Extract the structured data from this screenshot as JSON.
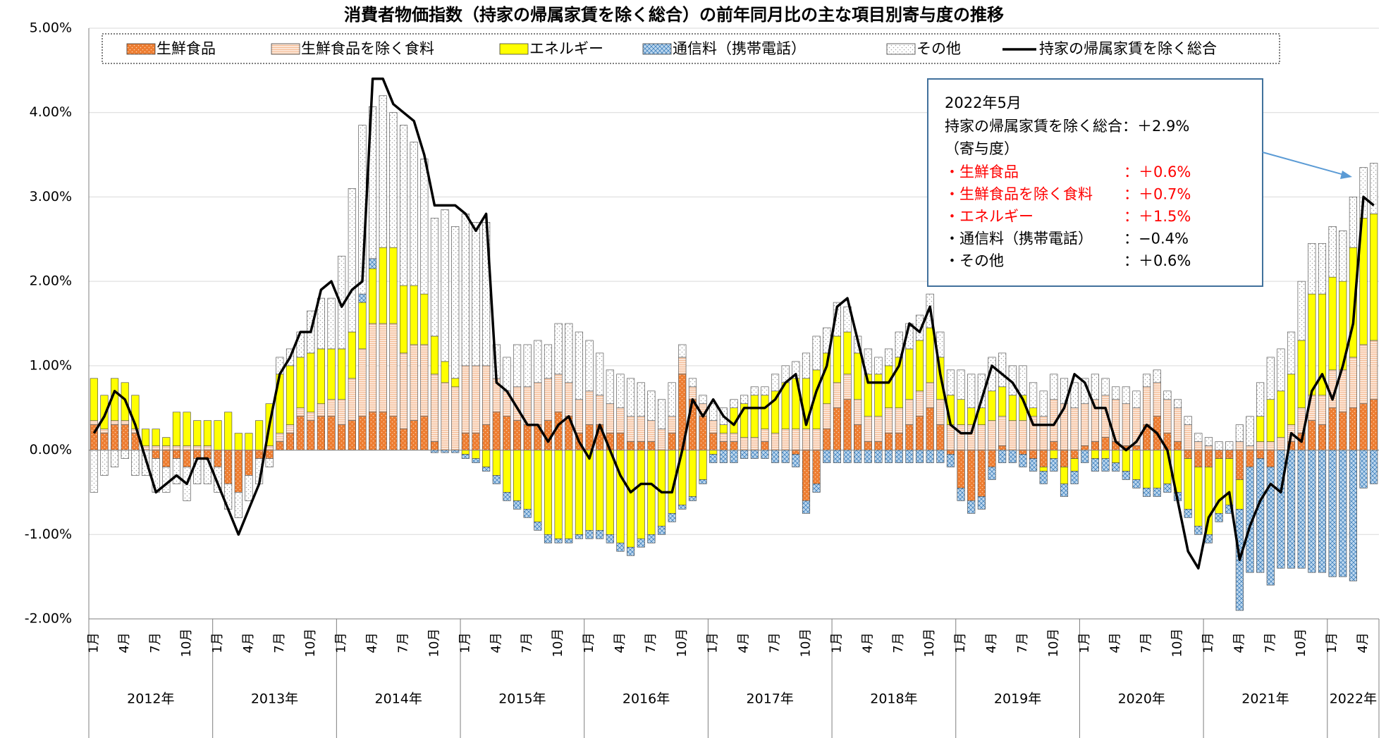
{
  "chart_data": {
    "type": "stacked_bar_line",
    "title": "消費者物価指数（持家の帰属家賃を除く総合）の前年同月比の主な項目別寄与度の推移",
    "ylim": [
      -2,
      5
    ],
    "yticks": [
      {
        "value": -2,
        "label": "-2.00%"
      },
      {
        "value": -1,
        "label": "-1.00%"
      },
      {
        "value": 0,
        "label": "0.00%"
      },
      {
        "value": 1,
        "label": "1.00%"
      },
      {
        "value": 2,
        "label": "2.00%"
      },
      {
        "value": 3,
        "label": "3.00%"
      },
      {
        "value": 4,
        "label": "4.00%"
      },
      {
        "value": 5,
        "label": "5.00%"
      }
    ],
    "grid": true,
    "categories": [
      "1月",
      null,
      null,
      "4月",
      null,
      null,
      "7月",
      null,
      null,
      "10月",
      null,
      null,
      "1月",
      null,
      null,
      "4月",
      null,
      null,
      "7月",
      null,
      null,
      "10月",
      null,
      null,
      "1月",
      null,
      null,
      "4月",
      null,
      null,
      "7月",
      null,
      null,
      "10月",
      null,
      null,
      "1月",
      null,
      null,
      "4月",
      null,
      null,
      "7月",
      null,
      null,
      "10月",
      null,
      null,
      "1月",
      null,
      null,
      "4月",
      null,
      null,
      "7月",
      null,
      null,
      "10月",
      null,
      null,
      "1月",
      null,
      null,
      "4月",
      null,
      null,
      "7月",
      null,
      null,
      "10月",
      null,
      null,
      "1月",
      null,
      null,
      "4月",
      null,
      null,
      "7月",
      null,
      null,
      "10月",
      null,
      null,
      "1月",
      null,
      null,
      "4月",
      null,
      null,
      "7月",
      null,
      null,
      "10月",
      null,
      null,
      "1月",
      null,
      null,
      "4月",
      null,
      null,
      "7月",
      null,
      null,
      "10月",
      null,
      null,
      "1月",
      null,
      null,
      "4月",
      null,
      null,
      "7月",
      null,
      null,
      "10月",
      null,
      null,
      "1月",
      null,
      null,
      "4月",
      null
    ],
    "years": [
      "2012年",
      "2013年",
      "2014年",
      "2015年",
      "2016年",
      "2017年",
      "2018年",
      "2019年",
      "2020年",
      "2021年",
      "2022年"
    ],
    "series": [
      {
        "name": "生鮮食品",
        "color": "#ed7d31",
        "pattern": "dots",
        "pattern_color": "#ffd2b0",
        "values": [
          0.3,
          0.2,
          0.3,
          0.3,
          0.2,
          0,
          -0.1,
          -0.2,
          -0.1,
          -0.2,
          -0.1,
          -0.1,
          -0.2,
          -0.4,
          -0.5,
          -0.3,
          -0.1,
          -0.1,
          0.1,
          0.2,
          0.4,
          0.35,
          0.4,
          0.4,
          0.3,
          0.35,
          0.4,
          0.45,
          0.45,
          0.4,
          0.25,
          0.35,
          0.4,
          0.1,
          0,
          0,
          0.2,
          0.2,
          0.3,
          0.45,
          0.4,
          0.35,
          0.3,
          0.3,
          0.35,
          0.45,
          0.4,
          0.2,
          0.3,
          0.3,
          0.2,
          0.2,
          0.1,
          0.1,
          0.1,
          0,
          0.2,
          0.9,
          0.6,
          0.4,
          0.2,
          0.1,
          0.1,
          0,
          0,
          0.1,
          0,
          0,
          -0.05,
          -0.6,
          -0.4,
          0.25,
          0.5,
          0.6,
          0.3,
          0.1,
          0.1,
          0.2,
          0.2,
          0.3,
          0.4,
          0.5,
          0.3,
          -0.05,
          -0.45,
          -0.6,
          -0.55,
          -0.2,
          0.05,
          0,
          -0.05,
          -0.1,
          -0.2,
          0.1,
          -0.2,
          -0.1,
          0.05,
          0.1,
          0.15,
          0.1,
          0.05,
          0.05,
          0.3,
          0.4,
          0.2,
          0.1,
          -0.1,
          -0.2,
          -0.2,
          -0.1,
          -0.1,
          -0.35,
          -0.2,
          -0.1,
          -0.2,
          0,
          0.1,
          0.2,
          0.35,
          0.3,
          0.5,
          0.45,
          0.5,
          0.55,
          0.6
        ]
      },
      {
        "name": "生鮮食品を除く食料",
        "color": "#fbe5d6",
        "pattern": "hlines",
        "pattern_color": "#f4b183",
        "values": [
          0.05,
          0.05,
          0.05,
          0.05,
          0.05,
          0.05,
          0.05,
          0.05,
          0.05,
          0.05,
          0.05,
          0.05,
          0,
          0,
          0,
          0,
          0,
          0.05,
          0.1,
          0.1,
          0.1,
          0.1,
          0.15,
          0.2,
          0.3,
          0.5,
          0.8,
          1.05,
          1.05,
          1.1,
          0.9,
          0.9,
          0.85,
          0.8,
          0.8,
          0.75,
          0.8,
          0.8,
          0.7,
          0.4,
          0.3,
          0.4,
          0.45,
          0.5,
          0.5,
          0.45,
          0.4,
          0.4,
          0.4,
          0.35,
          0.35,
          0.3,
          0.3,
          0.3,
          0.25,
          0.25,
          0.2,
          0.2,
          0.15,
          0.15,
          0.15,
          0.1,
          0.1,
          0.15,
          0.15,
          0.15,
          0.2,
          0.25,
          0.25,
          0.25,
          0.25,
          0.3,
          0.3,
          0.3,
          0.3,
          0.3,
          0.3,
          0.3,
          0.3,
          0.3,
          0.3,
          0.3,
          0.3,
          0.3,
          0.3,
          0.3,
          0.3,
          0.35,
          0.35,
          0.35,
          0.35,
          0.4,
          0.4,
          0.5,
          0.55,
          0.5,
          0.5,
          0.5,
          0.5,
          0.5,
          0.5,
          0.45,
          0.45,
          0.4,
          0.4,
          0.4,
          0.3,
          0.1,
          0.05,
          0,
          0,
          0.1,
          0.05,
          0.1,
          0.1,
          0.15,
          0.2,
          0.3,
          0.3,
          0.35,
          0.45,
          0.5,
          0.6,
          0.7,
          0.7
        ]
      },
      {
        "name": "エネルギー",
        "color": "#ffff00",
        "pattern": "none",
        "pattern_color": "#ffff00",
        "values": [
          0.5,
          0.4,
          0.5,
          0.45,
          0.4,
          0.2,
          0.2,
          0.1,
          0.4,
          0.4,
          0.3,
          0.3,
          0.35,
          0.45,
          0.2,
          0.2,
          0.35,
          0.5,
          0.7,
          0.7,
          0.6,
          0.7,
          0.65,
          0.6,
          0.6,
          0.55,
          0.55,
          0.65,
          0.9,
          0.9,
          0.8,
          0.7,
          0.6,
          0.45,
          0.25,
          0.1,
          -0.05,
          -0.1,
          -0.2,
          -0.3,
          -0.5,
          -0.6,
          -0.7,
          -0.85,
          -1,
          -1.05,
          -1.05,
          -1,
          -0.95,
          -0.95,
          -1,
          -1.1,
          -1.15,
          -1.05,
          -1,
          -0.9,
          -0.75,
          -0.65,
          -0.55,
          -0.35,
          -0.05,
          0.1,
          0.3,
          0.4,
          0.5,
          0.4,
          0.5,
          0.55,
          0.6,
          0.6,
          0.7,
          0.6,
          0.55,
          0.5,
          0.55,
          0.5,
          0.5,
          0.5,
          0.6,
          0.6,
          0.6,
          0.65,
          0.5,
          0.35,
          0.3,
          0.2,
          0.2,
          0.35,
          0.35,
          0.3,
          0.3,
          0.1,
          -0.05,
          -0.1,
          -0.2,
          -0.15,
          0,
          -0.1,
          -0.1,
          -0.15,
          -0.25,
          -0.35,
          -0.45,
          -0.45,
          -0.4,
          -0.5,
          -0.6,
          -0.7,
          -0.8,
          -0.65,
          -0.55,
          -0.35,
          0,
          0.3,
          0.5,
          0.55,
          0.6,
          0.8,
          1.2,
          1.2,
          1.1,
          1.05,
          1.3,
          1.5,
          1.5
        ]
      },
      {
        "name": "通信料（携帯電話）",
        "color": "#bdd7ee",
        "pattern": "cross",
        "pattern_color": "#2e75b6",
        "values": [
          0,
          0,
          0,
          0,
          0,
          0,
          0,
          0,
          0,
          0,
          0,
          0,
          0,
          0,
          0,
          0,
          0,
          0,
          0,
          0,
          0,
          0,
          0,
          0,
          0,
          0,
          0.1,
          0.12,
          0,
          0,
          0,
          0,
          0,
          -0.03,
          -0.03,
          -0.03,
          -0.05,
          -0.05,
          -0.05,
          -0.1,
          -0.1,
          -0.1,
          -0.1,
          -0.1,
          -0.1,
          -0.05,
          -0.05,
          -0.05,
          -0.1,
          -0.1,
          -0.1,
          -0.1,
          -0.1,
          -0.1,
          -0.1,
          -0.1,
          -0.1,
          -0.05,
          -0.05,
          -0.05,
          -0.1,
          -0.15,
          -0.15,
          -0.1,
          -0.1,
          -0.1,
          -0.15,
          -0.15,
          -0.15,
          -0.15,
          -0.1,
          -0.15,
          -0.15,
          -0.15,
          -0.15,
          -0.15,
          -0.15,
          -0.15,
          -0.15,
          -0.15,
          -0.15,
          -0.15,
          -0.15,
          -0.15,
          -0.15,
          -0.15,
          -0.15,
          -0.15,
          -0.15,
          -0.15,
          -0.15,
          -0.15,
          -0.15,
          -0.15,
          -0.15,
          -0.15,
          -0.15,
          -0.15,
          -0.15,
          -0.1,
          -0.1,
          -0.1,
          -0.1,
          -0.1,
          -0.1,
          -0.1,
          -0.1,
          -0.1,
          -0.1,
          -0.1,
          -0.1,
          -1.2,
          -1.25,
          -1.35,
          -1.4,
          -1.4,
          -1.4,
          -1.4,
          -1.45,
          -1.45,
          -1.5,
          -1.5,
          -1.55,
          -0.45,
          -0.4
        ]
      },
      {
        "name": "その他",
        "color": "#ffffff",
        "pattern": "dots",
        "pattern_color": "#a6a6a6",
        "values": [
          -0.5,
          -0.3,
          -0.2,
          -0.1,
          -0.3,
          -0.3,
          -0.4,
          -0.3,
          -0.3,
          -0.4,
          -0.3,
          -0.3,
          -0.3,
          -0.3,
          -0.3,
          -0.3,
          -0.3,
          -0.1,
          0.2,
          0.2,
          0.3,
          0.5,
          0.6,
          0.6,
          1.1,
          1.7,
          2,
          1.8,
          1.8,
          1.6,
          1.9,
          1.7,
          1.6,
          1.4,
          1.8,
          1.8,
          1.8,
          1.7,
          1.7,
          0.4,
          0.4,
          0.5,
          0.5,
          0.5,
          0.4,
          0.6,
          0.7,
          0.8,
          0.6,
          0.5,
          0.4,
          0.4,
          0.45,
          0.4,
          0.35,
          0.35,
          0.4,
          0.15,
          0.1,
          0.1,
          0.2,
          0.2,
          0.1,
          0.1,
          0.1,
          0.1,
          0.2,
          0.2,
          0.2,
          0.3,
          0.4,
          0.3,
          0.4,
          0.3,
          0.2,
          0.3,
          0.2,
          0.2,
          0.3,
          0.3,
          0.3,
          0.4,
          0.3,
          0.3,
          0.35,
          0.4,
          0.4,
          0.4,
          0.4,
          0.35,
          0.35,
          0.3,
          0.3,
          0.3,
          0.3,
          0.3,
          0.3,
          0.3,
          0.2,
          0.15,
          0.2,
          0.2,
          0.15,
          0.15,
          0.1,
          0.1,
          0.1,
          0.1,
          0.1,
          0.1,
          0.1,
          0.2,
          0.35,
          0.4,
          0.5,
          0.5,
          0.5,
          0.7,
          0.6,
          0.6,
          0.6,
          0.6,
          0.6,
          0.6,
          0.6
        ]
      }
    ],
    "line": {
      "name": "持家の帰属家賃を除く総合",
      "color": "#000000",
      "values": [
        0.2,
        0.4,
        0.7,
        0.6,
        0.3,
        -0.1,
        -0.5,
        -0.4,
        -0.3,
        -0.4,
        -0.1,
        -0.1,
        -0.4,
        -0.7,
        -1,
        -0.7,
        -0.4,
        0.3,
        0.9,
        1.1,
        1.4,
        1.4,
        1.9,
        2,
        1.7,
        1.9,
        2,
        4.4,
        4.4,
        4.1,
        4,
        3.9,
        3.5,
        2.9,
        2.9,
        2.9,
        2.8,
        2.6,
        2.8,
        0.8,
        0.7,
        0.5,
        0.3,
        0.3,
        0.1,
        0.3,
        0.4,
        0.1,
        -0.1,
        0.3,
        0,
        -0.3,
        -0.5,
        -0.4,
        -0.4,
        -0.5,
        -0.5,
        0,
        0.6,
        0.4,
        0.6,
        0.4,
        0.3,
        0.5,
        0.5,
        0.5,
        0.6,
        0.8,
        0.9,
        0.3,
        0.7,
        1,
        1.7,
        1.8,
        1.3,
        0.8,
        0.8,
        0.8,
        1,
        1.5,
        1.4,
        1.7,
        0.9,
        0.3,
        0.2,
        0.2,
        0.6,
        1,
        0.9,
        0.8,
        0.6,
        0.3,
        0.3,
        0.3,
        0.5,
        0.9,
        0.8,
        0.5,
        0.5,
        0.1,
        0,
        0.1,
        0.3,
        0.2,
        0,
        -0.6,
        -1.2,
        -1.4,
        -0.8,
        -0.6,
        -0.5,
        -1.3,
        -0.9,
        -0.6,
        -0.4,
        -0.5,
        0.2,
        0.1,
        0.7,
        0.9,
        0.6,
        1,
        1.5,
        3,
        2.9
      ]
    },
    "annotation": {
      "title": "2022年5月",
      "headline": "持家の帰属家賃を除く総合：＋2.9%",
      "subhead": "（寄与度）",
      "items": [
        {
          "label": "・生鮮食品",
          "value": "：＋0.6%",
          "color": "#ff0000"
        },
        {
          "label": "・生鮮食品を除く食料",
          "value": "：＋0.7%",
          "color": "#ff0000"
        },
        {
          "label": "・エネルギー",
          "value": "：＋1.5%",
          "color": "#ff0000"
        },
        {
          "label": "・通信料（携帯電話）",
          "value": "：−0.4%",
          "color": "#000000"
        },
        {
          "label": "・その他",
          "value": "：＋0.6%",
          "color": "#000000"
        }
      ]
    }
  }
}
